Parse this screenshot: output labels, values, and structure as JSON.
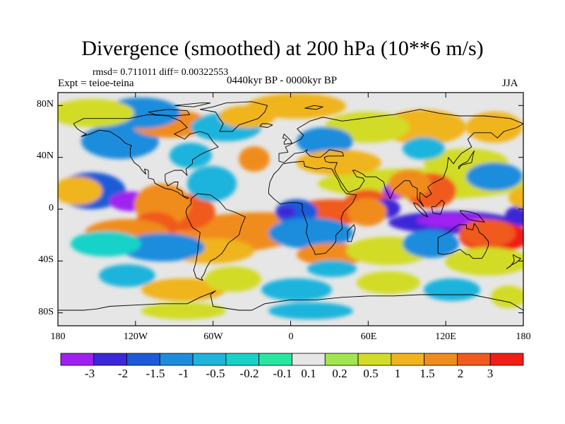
{
  "title": "Divergence (smoothed) at 200 hPa (10**6 m/s)",
  "stats": "rmsd= 0.711011 diff= 0.00322553",
  "experiment": "Expt = teioe-teina",
  "period": "0440kyr BP - 0000kyr BP",
  "season": "JJA",
  "axes": {
    "y_labels": [
      "80N",
      "40N",
      "0",
      "40S",
      "80S"
    ],
    "x_labels": [
      "180",
      "120W",
      "60W",
      "0",
      "60E",
      "120E",
      "180"
    ]
  },
  "colorbar": {
    "labels": [
      "-3",
      "-2",
      "-1.5",
      "-1",
      "-0.5",
      "-0.2",
      "-0.1",
      "0.1",
      "0.2",
      "0.5",
      "1",
      "1.5",
      "2",
      "3"
    ],
    "colors": [
      "#a020f0",
      "#3c28d8",
      "#1e5ad8",
      "#1e8cdc",
      "#1eb4dc",
      "#18d2c8",
      "#28e6a0",
      "#e6e6e6",
      "#a0e650",
      "#d2dc28",
      "#f0b41e",
      "#f08c1e",
      "#f05a1e",
      "#f01e14"
    ]
  },
  "chart_data": {
    "type": "heatmap",
    "title": "Divergence (smoothed) at 200 hPa (10**6 m/s)",
    "units": "10**6 m/s",
    "level_hPa": 200,
    "season": "JJA",
    "xlim": [
      -180,
      180
    ],
    "ylim": [
      -90,
      90
    ],
    "levels": [
      -3,
      -2,
      -1.5,
      -1,
      -0.5,
      -0.2,
      -0.1,
      0.1,
      0.2,
      0.5,
      1,
      1.5,
      2,
      3
    ],
    "features": [
      {
        "name": "strong convergence, western Pacific / Maritime Continent",
        "lon": 120,
        "lat": -5,
        "value": -3
      },
      {
        "name": "convergence, eastern tropical Pacific",
        "lon": -130,
        "lat": 5,
        "value": -3
      },
      {
        "name": "convergence, central Indian Ocean",
        "lon": 78,
        "lat": 0,
        "value": -2
      },
      {
        "name": "divergence, north Australia",
        "lon": 155,
        "lat": -15,
        "value": 2
      },
      {
        "name": "divergence, tropical South America",
        "lon": -75,
        "lat": 2,
        "value": 1.5
      },
      {
        "name": "divergence, North Africa",
        "lon": 10,
        "lat": 15,
        "value": 1
      }
    ]
  }
}
